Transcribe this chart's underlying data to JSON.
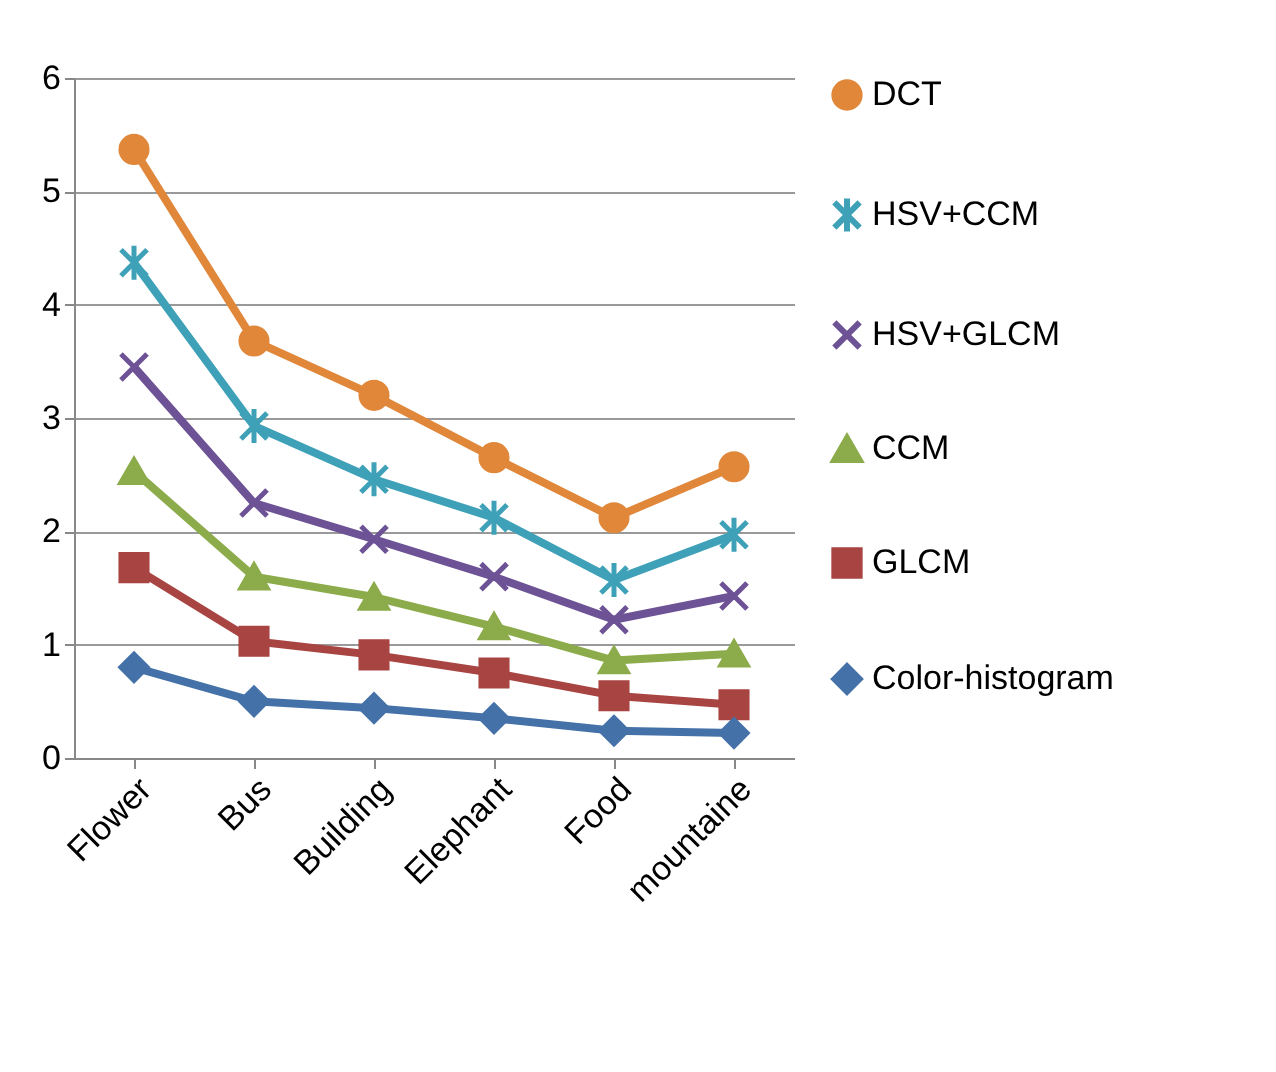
{
  "chart_data": {
    "type": "line",
    "categories": [
      "Flower",
      "Bus",
      "Building",
      "Elephant",
      "Food",
      "mountaine"
    ],
    "series": [
      {
        "name": "DCT",
        "color": "#e0873a",
        "marker": "circle",
        "values": [
          5.37,
          3.68,
          3.2,
          2.65,
          2.12,
          2.57
        ]
      },
      {
        "name": "HSV+CCM",
        "color": "#3fa1b8",
        "marker": "cross",
        "values": [
          4.37,
          2.93,
          2.46,
          2.12,
          1.57,
          1.97
        ]
      },
      {
        "name": "HSV+GLCM",
        "color": "#6d5295",
        "marker": "cross",
        "values": [
          3.45,
          2.25,
          1.93,
          1.6,
          1.22,
          1.43
        ]
      },
      {
        "name": "CCM",
        "color": "#8cab4a",
        "marker": "triangle",
        "values": [
          2.53,
          1.6,
          1.42,
          1.16,
          0.86,
          0.92
        ]
      },
      {
        "name": "GLCM",
        "color": "#a84441",
        "marker": "square",
        "values": [
          1.68,
          1.03,
          0.91,
          0.75,
          0.55,
          0.47
        ]
      },
      {
        "name": "Color-histogram",
        "color": "#4471a8",
        "marker": "diamond",
        "values": [
          0.8,
          0.5,
          0.44,
          0.35,
          0.24,
          0.22
        ]
      }
    ],
    "ylim": [
      0,
      6
    ],
    "yticks": [
      0,
      1,
      2,
      3,
      4,
      5,
      6
    ],
    "grid": "y",
    "legend": "right"
  }
}
